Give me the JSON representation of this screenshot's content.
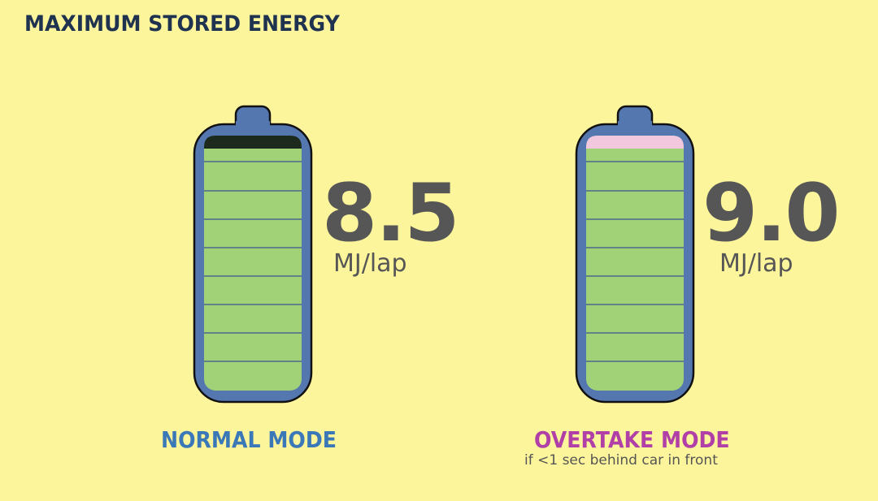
{
  "title": "MAXIMUM STORED ENERGY",
  "batteries": [
    {
      "value": "8.5",
      "unit": "MJ/lap",
      "mode": "NORMAL MODE",
      "mode_color": "#3b78b8",
      "top_segment_color": "#1b2a1c",
      "note": ""
    },
    {
      "value": "9.0",
      "unit": "MJ/lap",
      "mode": "OVERTAKE MODE",
      "mode_color": "#b040a8",
      "top_segment_color": "#f2c8de",
      "note": "if <1 sec behind car in front"
    }
  ],
  "colors": {
    "background": "#fdf59c",
    "battery_shell": "#5577b0",
    "charge": "#a2d277",
    "divider": "#4a6a8a"
  }
}
